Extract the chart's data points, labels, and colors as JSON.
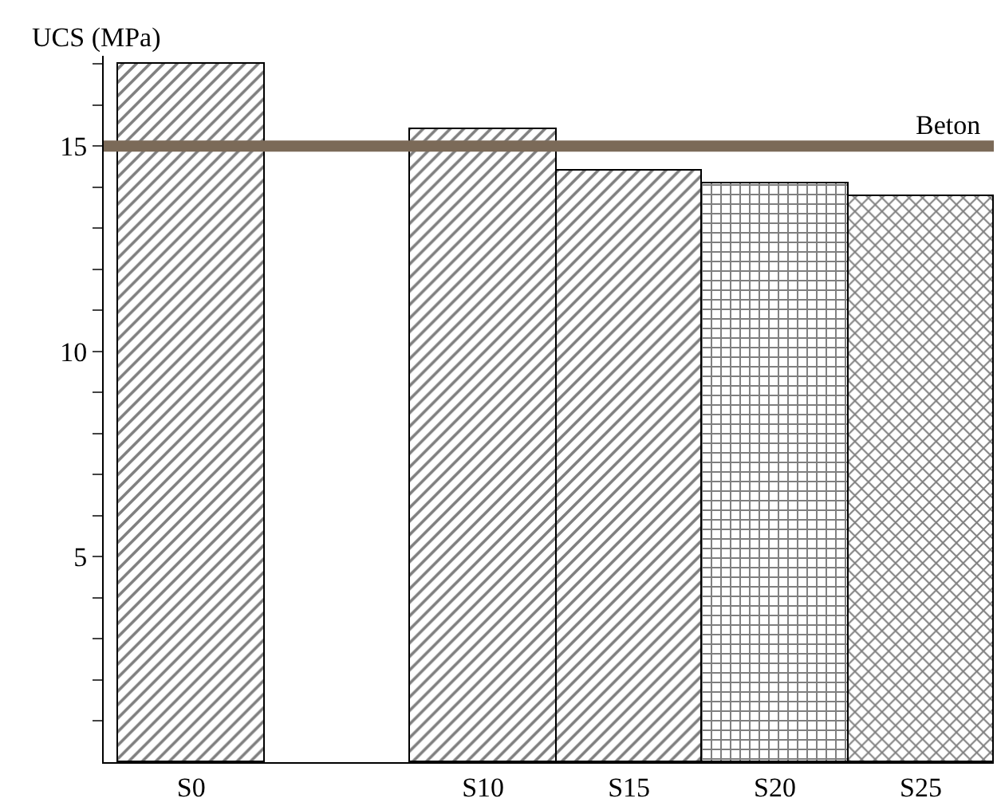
{
  "chart_data": {
    "type": "bar",
    "ylabel": "UCS (MPa)",
    "categories": [
      "S0",
      null,
      "S10",
      "S15",
      "S20",
      "S25"
    ],
    "values": [
      17.0,
      null,
      15.4,
      14.4,
      14.1,
      13.8
    ],
    "colors": [
      "#000000",
      "#000000",
      "#000000",
      "#000000",
      "#000000",
      "#000000"
    ],
    "ylim": [
      0,
      17.2
    ],
    "yticks": [
      {
        "value": 1,
        "label": null
      },
      {
        "value": 2,
        "label": null
      },
      {
        "value": 3,
        "label": null
      },
      {
        "value": 4,
        "label": null
      },
      5,
      {
        "value": 6,
        "label": null
      },
      {
        "value": 7,
        "label": null
      },
      {
        "value": 8,
        "label": null
      },
      {
        "value": 9,
        "label": null
      },
      10,
      {
        "value": 11,
        "label": null
      },
      {
        "value": 12,
        "label": null
      },
      {
        "value": 13,
        "label": null
      },
      {
        "value": 14,
        "label": null
      },
      15,
      {
        "value": 16,
        "label": null
      },
      {
        "value": 17,
        "label": null
      }
    ],
    "ref_lines": [
      {
        "axis": "y",
        "value": 15,
        "label": "Beton",
        "color": "#7b6a58"
      }
    ],
    "legend": false
  }
}
